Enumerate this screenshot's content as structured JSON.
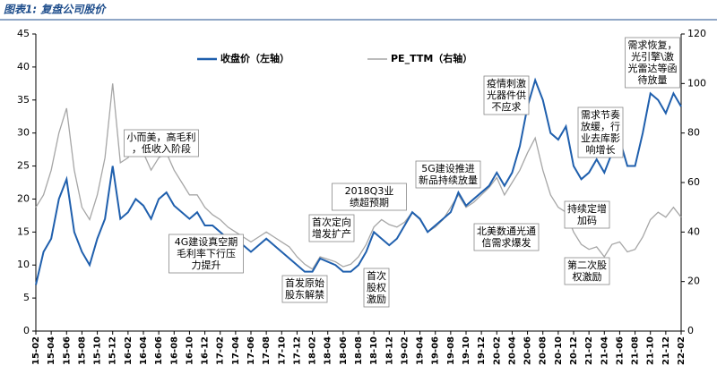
{
  "chart_data": {
    "type": "line",
    "title": "图表1: 复盘公司股价",
    "categories": [
      "15-02",
      null,
      "15-04",
      null,
      "15-06",
      null,
      "15-08",
      null,
      "15-10",
      null,
      "15-12",
      null,
      "16-02",
      null,
      "16-04",
      null,
      "16-06",
      null,
      "16-08",
      null,
      "16-10",
      null,
      "16-12",
      null,
      "17-02",
      null,
      "17-04",
      null,
      "17-06",
      null,
      "17-08",
      null,
      "17-10",
      null,
      "17-12",
      null,
      "18-02",
      null,
      "18-04",
      null,
      "18-06",
      null,
      "18-08",
      null,
      "18-10",
      null,
      "18-12",
      null,
      "19-02",
      null,
      "19-04",
      null,
      "19-06",
      null,
      "19-08",
      null,
      "19-10",
      null,
      "19-12",
      null,
      "20-02",
      null,
      "20-04",
      null,
      "20-06",
      null,
      "20-08",
      null,
      "20-10",
      null,
      "20-12",
      null,
      "21-02",
      null,
      "21-04",
      null,
      "21-06",
      null,
      "21-08",
      null,
      "21-10",
      null,
      "21-12",
      null,
      "22-02"
    ],
    "series": [
      {
        "name": "收盘价（左轴）",
        "color": "#1f5fad",
        "axis": "y",
        "values": [
          7,
          12,
          14,
          20,
          23,
          15,
          12,
          10,
          14,
          17,
          25,
          17,
          18,
          20,
          19,
          17,
          20,
          21,
          19,
          18,
          17,
          18,
          16,
          16,
          15,
          14,
          14,
          13,
          12,
          13,
          14,
          13,
          12,
          11,
          10,
          9,
          9,
          11,
          10.5,
          10,
          9,
          9,
          10,
          12,
          15,
          14,
          13,
          14,
          16,
          18,
          17,
          15,
          16,
          17,
          18,
          21,
          19,
          20,
          21,
          22,
          24,
          22,
          24,
          28,
          34,
          38,
          35,
          30,
          29,
          31,
          25,
          23,
          24,
          26,
          24,
          27,
          29,
          25,
          25,
          30,
          36,
          35,
          33,
          36,
          34
        ]
      },
      {
        "name": "PE_TTM（右轴）",
        "color": "#a6a6a6",
        "axis": "y2",
        "values": [
          50,
          55,
          65,
          80,
          90,
          65,
          50,
          45,
          55,
          70,
          100,
          68,
          70,
          75,
          72,
          65,
          70,
          72,
          65,
          60,
          55,
          55,
          50,
          47,
          45,
          42,
          40,
          38,
          36,
          38,
          40,
          38,
          36,
          34,
          30,
          27,
          25,
          30,
          29,
          28,
          26,
          27,
          30,
          35,
          42,
          45,
          43,
          42,
          44,
          48,
          45,
          40,
          42,
          45,
          50,
          55,
          50,
          52,
          55,
          58,
          62,
          55,
          60,
          65,
          72,
          78,
          65,
          55,
          50,
          48,
          40,
          35,
          33,
          34,
          30,
          35,
          36,
          32,
          33,
          38,
          45,
          48,
          46,
          50,
          46
        ]
      }
    ],
    "ylim": [
      0,
      45
    ],
    "yticks": [
      0,
      5,
      10,
      15,
      20,
      25,
      30,
      35,
      40,
      45
    ],
    "y2lim": [
      0,
      120
    ],
    "y2ticks": [
      0,
      20,
      40,
      60,
      80,
      100,
      120
    ],
    "annotations": [
      [
        "小而美，高毛利",
        "，低收入阶段"
      ],
      [
        "4G建设真空期",
        "毛利率下行压",
        "力提升"
      ],
      [
        "首发原始",
        "股东解禁"
      ],
      [
        "首次定向",
        "增发扩产"
      ],
      [
        "2018Q3业",
        "绩超预期"
      ],
      [
        "首次",
        "股权",
        "激励"
      ],
      [
        "5G建设推进",
        "新品持续放量"
      ],
      [
        "北美数通光通",
        "信需求爆发"
      ],
      [
        "疫情刺激",
        "光器件供",
        "不应求"
      ],
      [
        "持续定增",
        "加码"
      ],
      [
        "第二次股",
        "权激励"
      ],
      [
        "需求节奏",
        "放缓，行",
        "业去库影",
        "响增长"
      ],
      [
        "需求恢复，",
        "光引擎\\激",
        "光雷达等函",
        "待放量"
      ]
    ]
  }
}
